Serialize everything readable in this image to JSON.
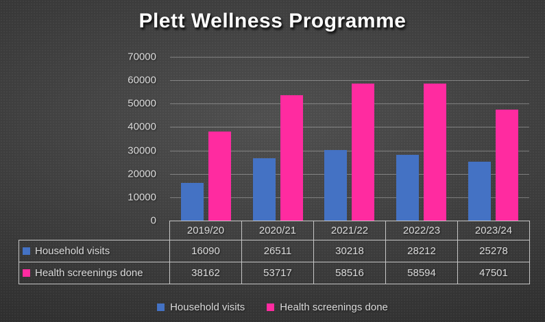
{
  "title": "Plett Wellness Programme",
  "colors": {
    "household_visits": "#4472C4",
    "health_screenings": "#FF2BA0",
    "text": "#DCDCDC",
    "gridline": "rgba(255,255,255,0.32)",
    "table_border": "#C7C7C7",
    "background_center": "#4f4f4f",
    "background_edge": "#262626"
  },
  "chart_data": {
    "type": "bar",
    "title": "Plett Wellness Programme",
    "categories": [
      "2019/20",
      "2020/21",
      "2021/22",
      "2022/23",
      "2023/24"
    ],
    "series": [
      {
        "name": "Household visits",
        "color": "#4472C4",
        "values": [
          16090,
          26511,
          30218,
          28212,
          25278
        ]
      },
      {
        "name": "Health screenings done",
        "color": "#FF2BA0",
        "values": [
          38162,
          53717,
          58516,
          58594,
          47501
        ]
      }
    ],
    "xlabel": "",
    "ylabel": "",
    "ylim": [
      0,
      70000
    ],
    "yticks": [
      0,
      10000,
      20000,
      30000,
      40000,
      50000,
      60000,
      70000
    ],
    "grid": true,
    "legend_position": "bottom",
    "data_table_shown": true
  },
  "legend": {
    "items": [
      {
        "label": "Household visits",
        "color": "#4472C4"
      },
      {
        "label": "Health screenings done",
        "color": "#FF2BA0"
      }
    ]
  }
}
